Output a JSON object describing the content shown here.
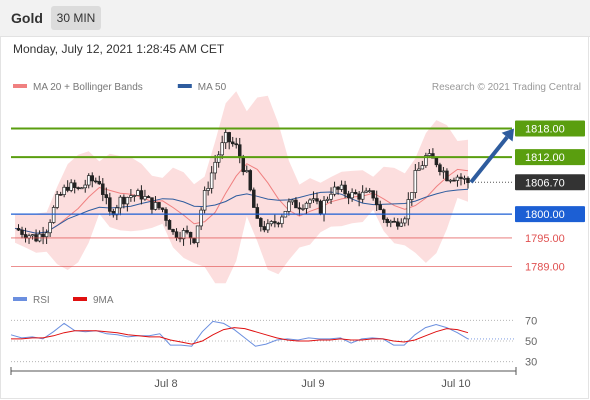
{
  "header": {
    "asset": "Gold",
    "interval": "30 MIN"
  },
  "timestamp": "Monday, July 12, 2021 1:28:45 AM CET",
  "legend": [
    {
      "label": "MA 20 + Bollinger Bands",
      "color": "#f08080"
    },
    {
      "label": "MA 50",
      "color": "#2e5c9e"
    }
  ],
  "credit": "Research © 2021 Trading Central",
  "chart_data": {
    "type": "candlestick",
    "price_range": [
      1787,
      1824
    ],
    "levels": [
      {
        "value": 1818.0,
        "label": "1818.00",
        "kind": "target",
        "color": "#5a9e0f"
      },
      {
        "value": 1812.0,
        "label": "1812.00",
        "kind": "target",
        "color": "#5a9e0f"
      },
      {
        "value": 1806.7,
        "label": "1806.70",
        "kind": "last-price",
        "color": "#333333"
      },
      {
        "value": 1800.0,
        "label": "1800.00",
        "kind": "pivot",
        "color": "#1c5fd4"
      },
      {
        "value": 1795.0,
        "label": "1795.00",
        "kind": "support",
        "color": "#e05050"
      },
      {
        "value": 1789.0,
        "label": "1789.00",
        "kind": "support",
        "color": "#e05050"
      }
    ],
    "close_path": [
      1797,
      1796,
      1795,
      1797,
      1803,
      1806,
      1805,
      1807,
      1807,
      1800,
      1803,
      1804,
      1804,
      1802,
      1801,
      1796,
      1796,
      1795,
      1804,
      1811,
      1816,
      1814,
      1808,
      1798,
      1797,
      1799,
      1802,
      1802,
      1803,
      1801,
      1805,
      1805,
      1804,
      1804,
      1804,
      1799,
      1798,
      1800,
      1808,
      1812,
      1811,
      1808,
      1808,
      1806.7
    ],
    "sessions": [
      "Jul 8",
      "Jul 9",
      "Jul 10"
    ],
    "forecast": {
      "from": 1806.7,
      "to": 1818.0
    },
    "rsi": {
      "legend": [
        {
          "label": "RSI",
          "color": "#6b8fdf"
        },
        {
          "label": "9MA",
          "color": "#e01010"
        }
      ],
      "range": [
        20,
        80
      ],
      "ticks": [
        70,
        50,
        30
      ],
      "rsi_values": [
        56,
        53,
        54,
        52,
        59,
        67,
        60,
        59,
        60,
        57,
        56,
        54,
        55,
        55,
        57,
        46,
        46,
        45,
        59,
        69,
        67,
        61,
        53,
        45,
        47,
        51,
        52,
        51,
        53,
        52,
        52,
        53,
        48,
        52,
        53,
        52,
        46,
        46,
        56,
        63,
        66,
        63,
        58,
        52
      ],
      "ma_values": [
        52,
        52,
        53,
        53,
        55,
        58,
        60,
        60,
        60,
        59,
        58,
        56,
        55,
        54,
        54,
        51,
        49,
        47,
        50,
        56,
        61,
        63,
        62,
        59,
        56,
        53,
        51,
        50,
        50,
        51,
        51,
        52,
        51,
        51,
        52,
        52,
        50,
        49,
        51,
        55,
        59,
        62,
        61,
        58
      ]
    }
  }
}
